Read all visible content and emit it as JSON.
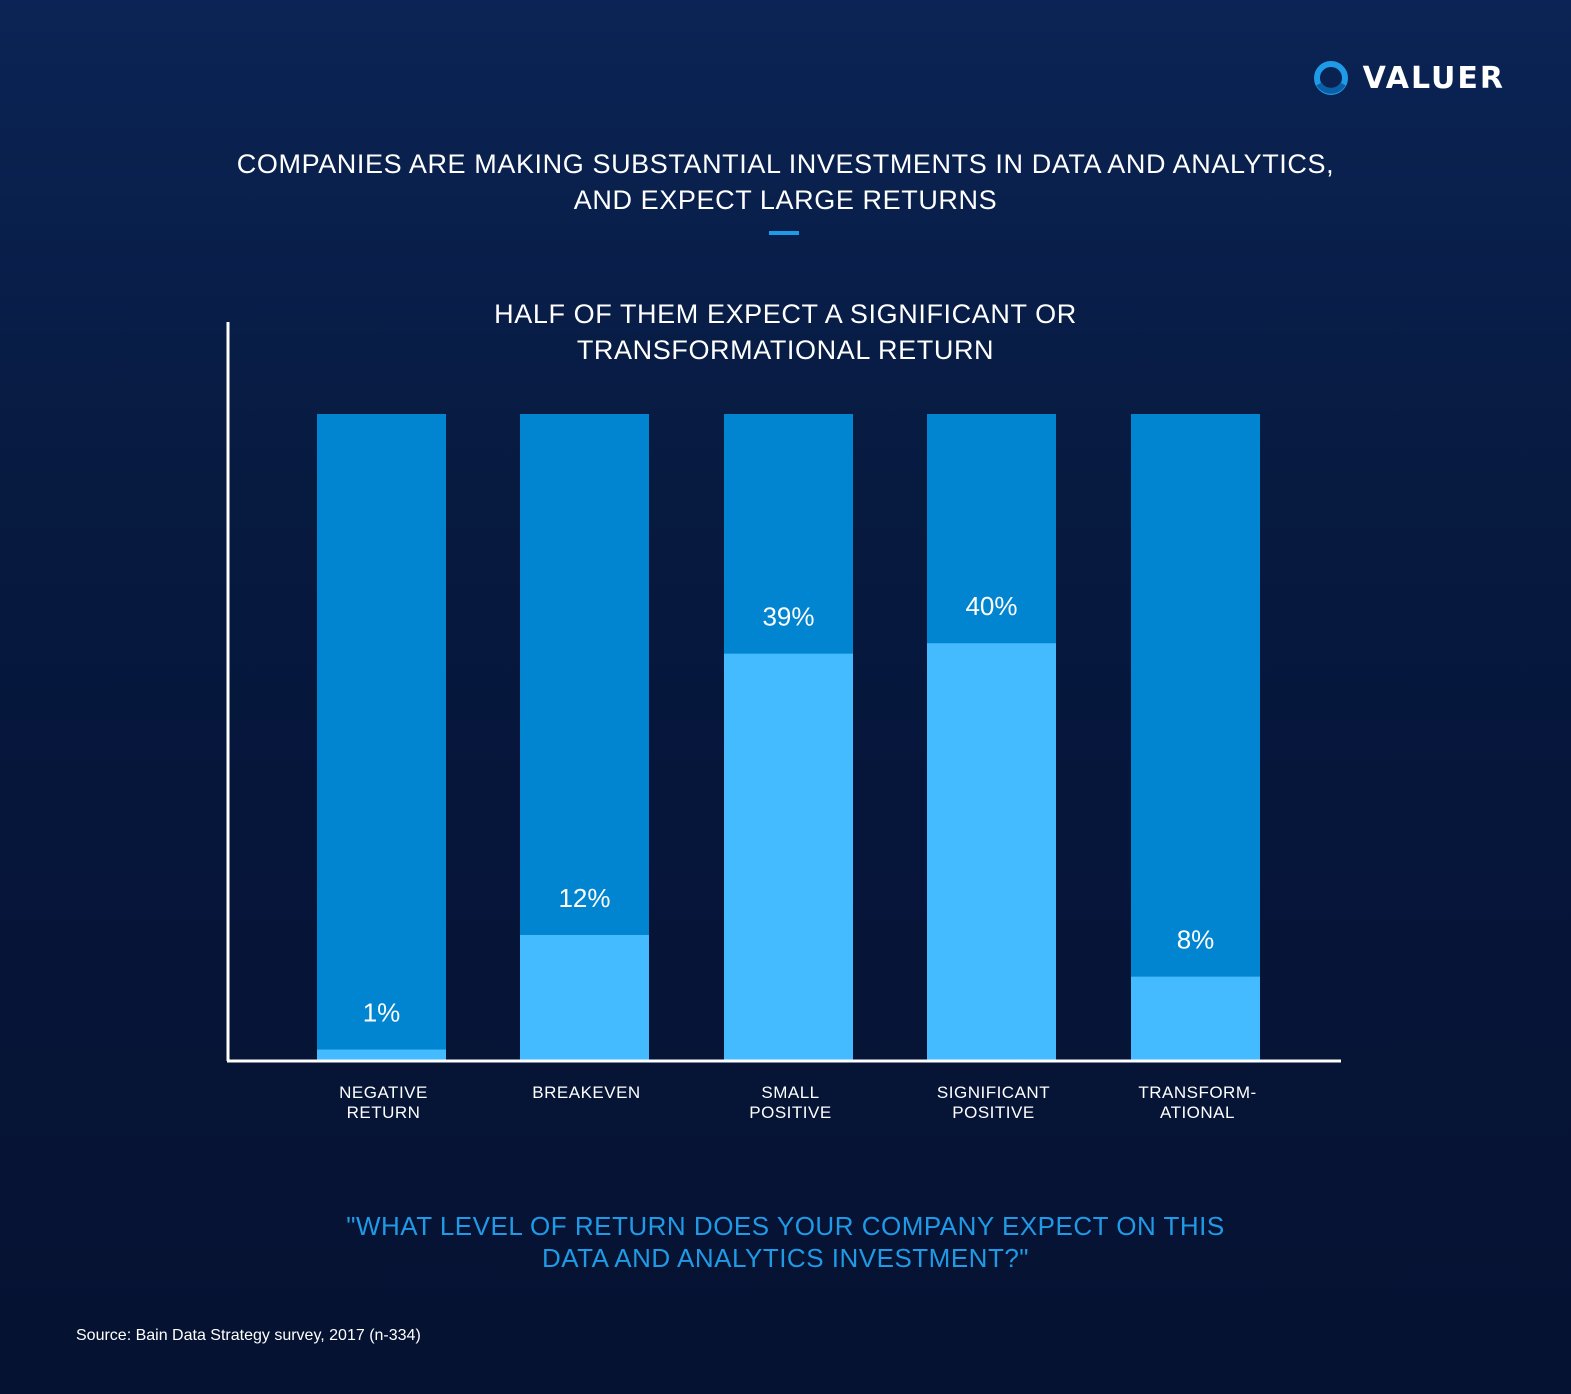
{
  "brand": {
    "name": "VALUER",
    "accent": "#1e9ae6"
  },
  "title": "COMPANIES ARE MAKING SUBSTANTIAL INVESTMENTS IN DATA AND ANALYTICS,\nAND EXPECT LARGE RETURNS",
  "question": "\"WHAT LEVEL OF RETURN DOES YOUR COMPANY EXPECT ON THIS\nDATA AND ANALYTICS INVESTMENT?\"",
  "source": "Source: Bain Data Strategy survey, 2017 (n-334)",
  "chart_data": {
    "type": "bar",
    "title": "HALF OF THEM EXPECT A SIGNIFICANT OR\nTRANSFORMATIONAL RETURN",
    "categories": [
      "NEGATIVE\nRETURN",
      "BREAKEVEN",
      "SMALL\nPOSITIVE",
      "SIGNIFICANT\nPOSITIVE",
      "TRANSFORM-\nATIONAL"
    ],
    "values": [
      1,
      12,
      39,
      40,
      8
    ],
    "value_labels": [
      "1%",
      "12%",
      "39%",
      "40%",
      "8%"
    ],
    "ylim": [
      0,
      62
    ],
    "xlabel": "",
    "ylabel": "",
    "grid": false,
    "colors": {
      "value_fill": "#45bbff",
      "background_bar": "#0185d0",
      "axis": "#ffffff"
    }
  }
}
